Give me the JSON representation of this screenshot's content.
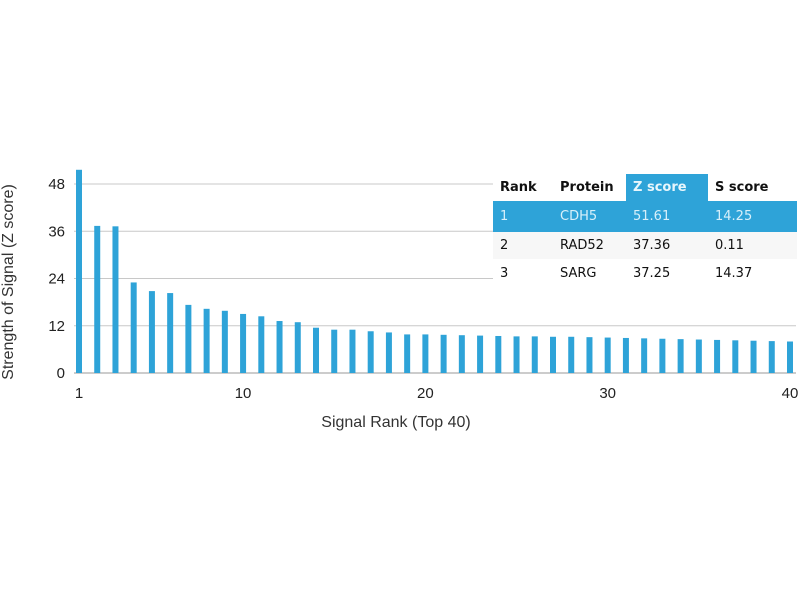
{
  "chart_data": {
    "type": "bar",
    "xlabel": "Signal Rank (Top 40)",
    "ylabel": "Strength of Signal (Z score)",
    "ylim": [
      0,
      48
    ],
    "yticks": [
      0,
      12,
      24,
      36,
      48
    ],
    "xticks": [
      1,
      10,
      20,
      30,
      40
    ],
    "grid": true,
    "bar_color": "#2ea3d8",
    "categories": [
      1,
      2,
      3,
      4,
      5,
      6,
      7,
      8,
      9,
      10,
      11,
      12,
      13,
      14,
      15,
      16,
      17,
      18,
      19,
      20,
      21,
      22,
      23,
      24,
      25,
      26,
      27,
      28,
      29,
      30,
      31,
      32,
      33,
      34,
      35,
      36,
      37,
      38,
      39,
      40
    ],
    "values": [
      51.61,
      37.36,
      37.25,
      23.0,
      20.8,
      20.3,
      17.3,
      16.3,
      15.8,
      15.0,
      14.4,
      13.2,
      12.9,
      11.5,
      11.0,
      11.0,
      10.6,
      10.3,
      9.8,
      9.8,
      9.7,
      9.6,
      9.5,
      9.4,
      9.3,
      9.3,
      9.2,
      9.2,
      9.1,
      9.0,
      8.9,
      8.8,
      8.7,
      8.6,
      8.5,
      8.4,
      8.3,
      8.2,
      8.1,
      8.0
    ]
  },
  "table": {
    "headers": [
      "Rank",
      "Protein",
      "Z score",
      "S score"
    ],
    "highlight_color": "#2ea3d8",
    "rows": [
      [
        "1",
        "CDH5",
        "51.61",
        "14.25"
      ],
      [
        "2",
        "RAD52",
        "37.36",
        "0.11"
      ],
      [
        "3",
        "SARG",
        "37.25",
        "14.37"
      ]
    ]
  }
}
